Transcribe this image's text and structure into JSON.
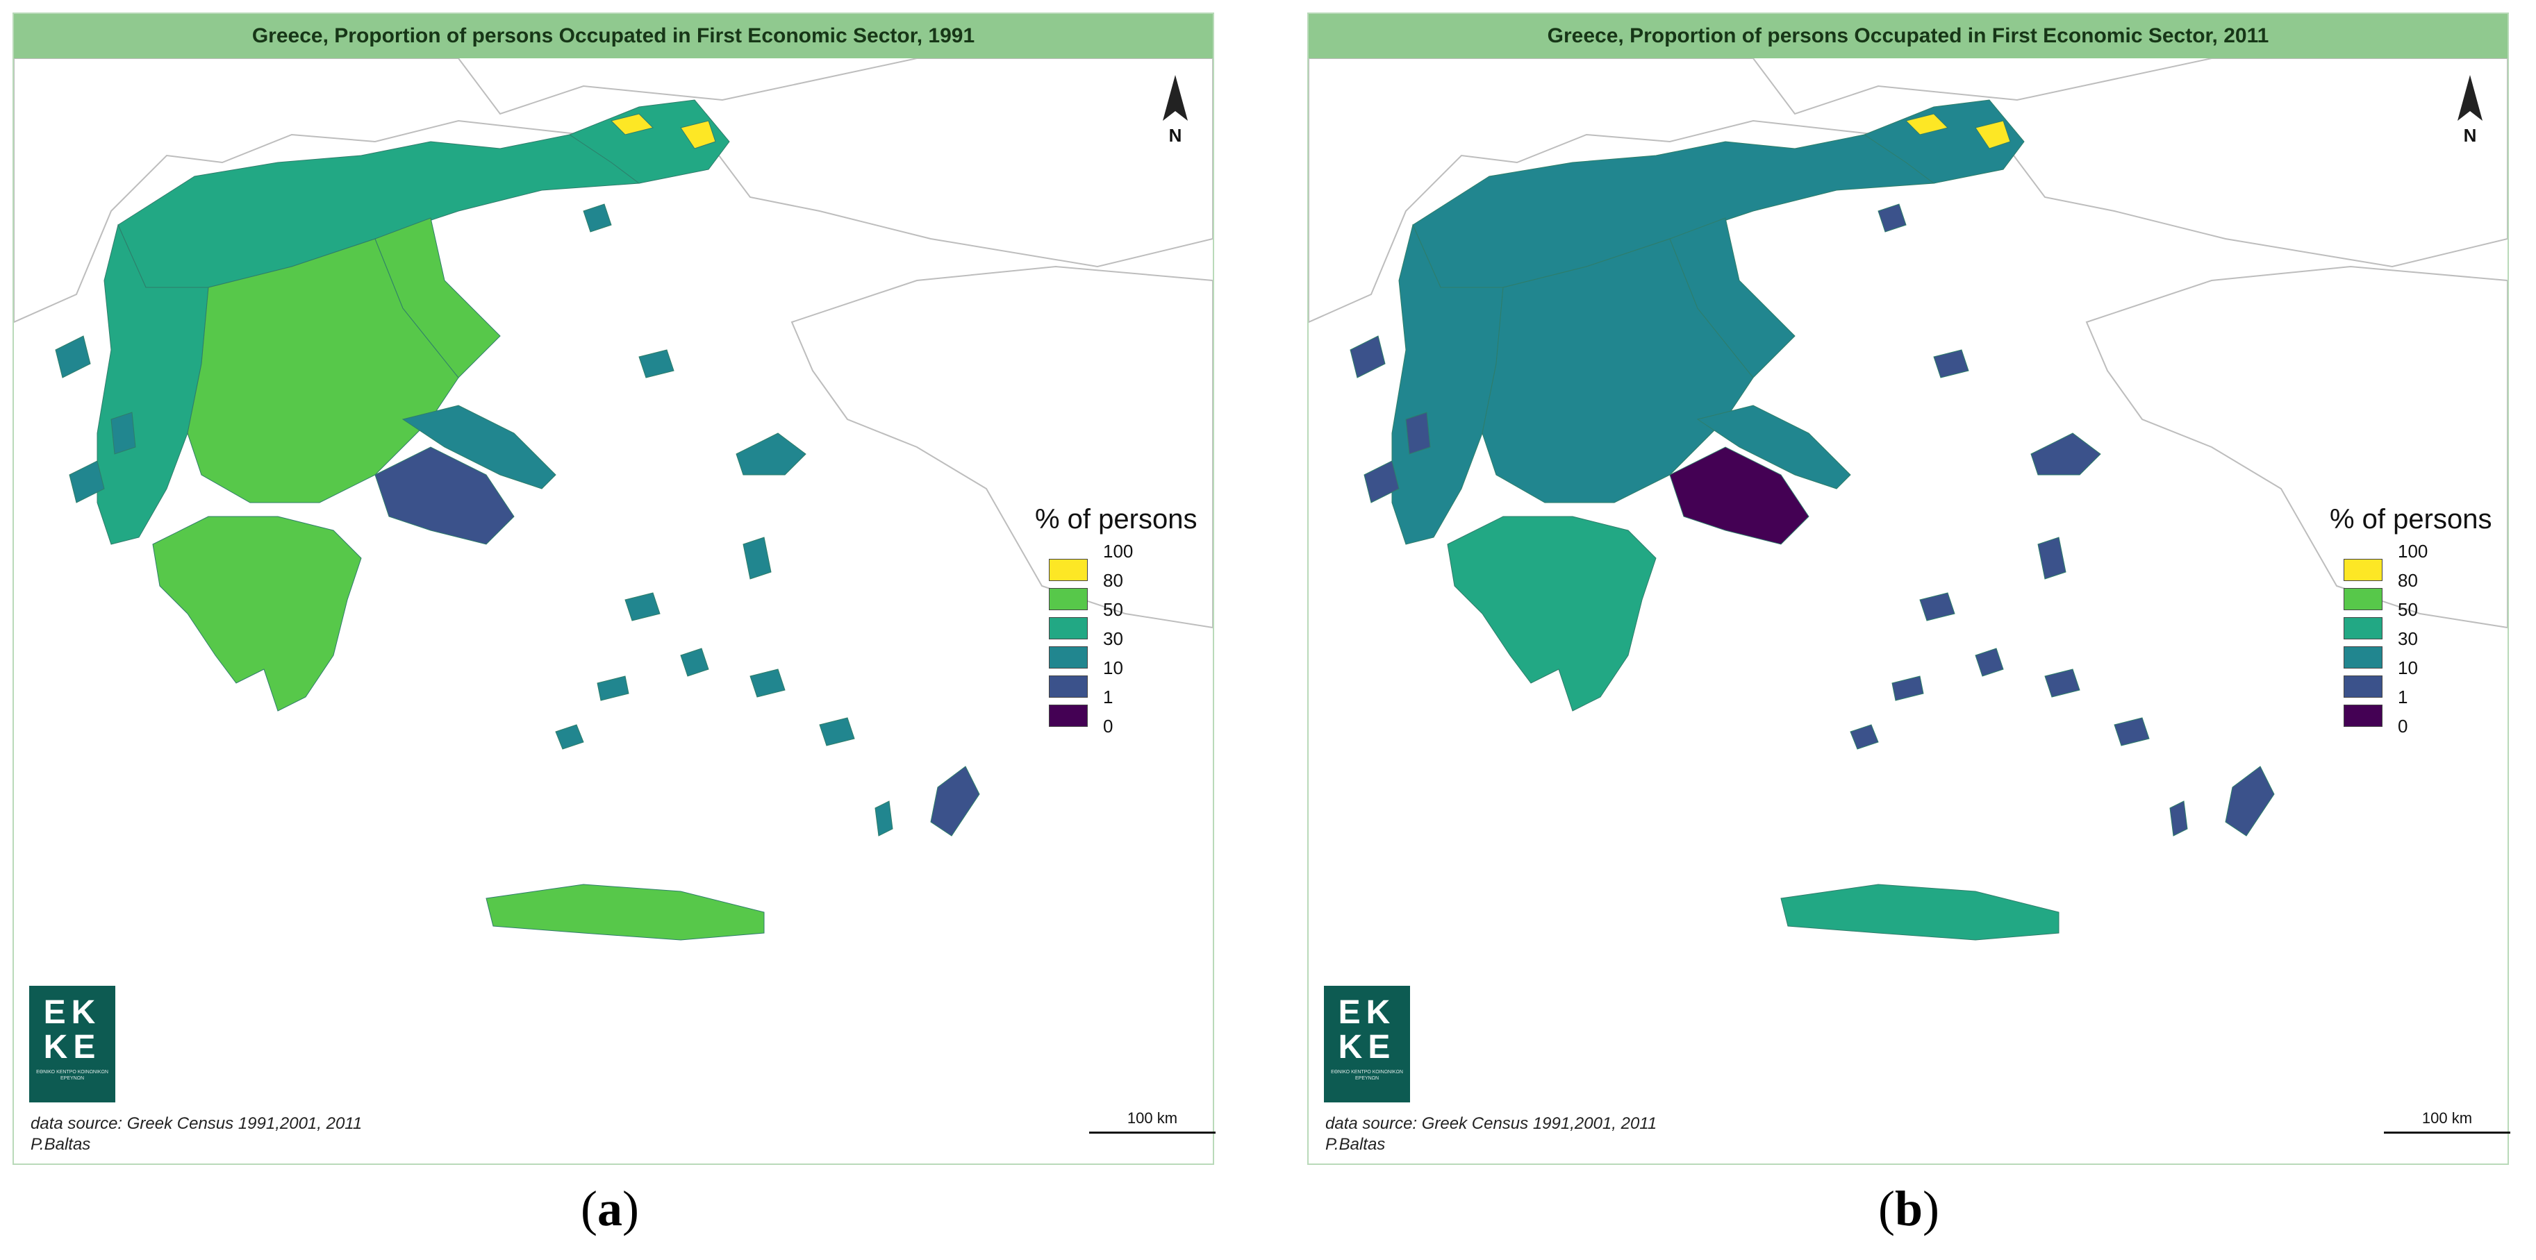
{
  "colors": {
    "c0_1": "#440154",
    "c1_10": "#3b528b",
    "c10_30": "#21868f",
    "c30_50": "#22a884",
    "c50_80": "#57c84a",
    "c80_100": "#fde725",
    "land_outline": "#bdbdbd",
    "title_bar": "#90c98f",
    "logo_bg": "#0d5b52"
  },
  "panels": [
    {
      "title": "Greece, Proportion of persons Occupated in First Economic Sector, 1991",
      "caption_open": "(",
      "caption_letter": "a",
      "caption_close": ")",
      "north": "N",
      "legend_title": "% of persons",
      "legend_ticks": [
        "100",
        "80",
        "50",
        "30",
        "10",
        "1",
        "0"
      ],
      "logo_text_1": "EK",
      "logo_text_2": "KE",
      "logo_subtext": "ΕΘΝΙΚΟ ΚΕΝΤΡΟ ΚΟΙΝΩΝΙΚΩΝ ΕΡΕΥΝΩΝ",
      "source_line_1": "data source: Greek Census 1991,2001, 2011",
      "source_line_2": "P.Baltas",
      "scale_label": "100 km",
      "region_colors": {
        "west_greece": "c30_50",
        "north_mainland": "c30_50",
        "central_mainland": "c50_80",
        "peloponnese": "c50_80",
        "attica": "c1_10",
        "thrace": "c30_50",
        "thrace_hot": "c80_100",
        "crete": "c50_80",
        "aegean_islands": "c10_30",
        "rhodes": "c1_10",
        "evia": "c10_30"
      }
    },
    {
      "title": "Greece, Proportion of persons Occupated in First Economic Sector, 2011",
      "caption_open": "(",
      "caption_letter": "b",
      "caption_close": ")",
      "north": "N",
      "legend_title": "% of persons",
      "legend_ticks": [
        "100",
        "80",
        "50",
        "30",
        "10",
        "1",
        "0"
      ],
      "logo_text_1": "EK",
      "logo_text_2": "KE",
      "logo_subtext": "ΕΘΝΙΚΟ ΚΕΝΤΡΟ ΚΟΙΝΩΝΙΚΩΝ ΕΡΕΥΝΩΝ",
      "source_line_1": "data source: Greek Census 1991,2001, 2011",
      "source_line_2": "P.Baltas",
      "scale_label": "100 km",
      "region_colors": {
        "west_greece": "c10_30",
        "north_mainland": "c10_30",
        "central_mainland": "c10_30",
        "peloponnese": "c30_50",
        "attica": "c0_1",
        "thrace": "c10_30",
        "thrace_hot": "c80_100",
        "crete": "c30_50",
        "aegean_islands": "c1_10",
        "rhodes": "c1_10",
        "evia": "c10_30"
      }
    }
  ]
}
